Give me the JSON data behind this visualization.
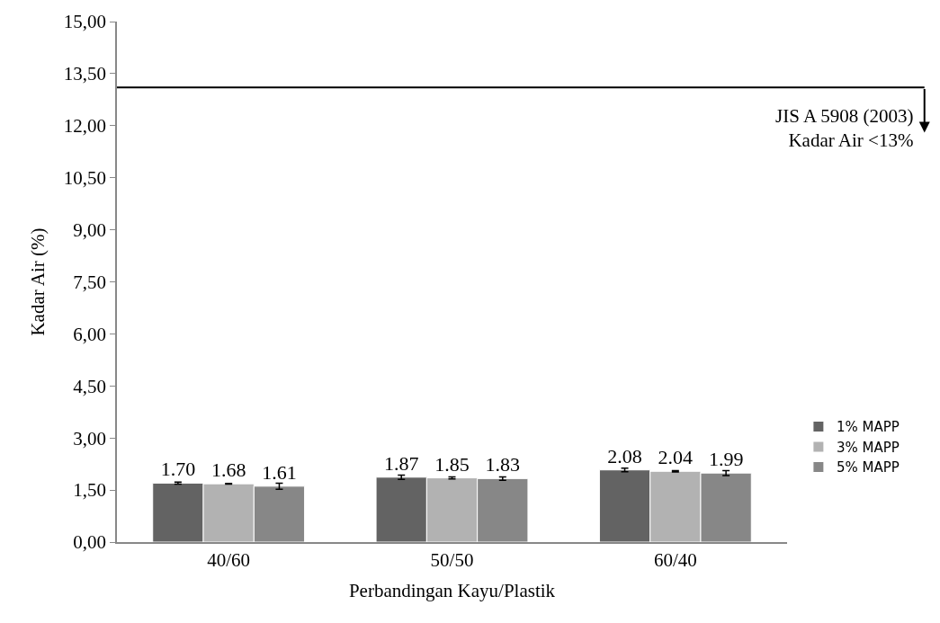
{
  "chart_data": {
    "type": "bar",
    "xlabel": "Perbandingan Kayu/Plastik",
    "ylabel": "Kadar Air (%)",
    "categories": [
      "40/60",
      "50/50",
      "60/40"
    ],
    "series": [
      {
        "name": "1% MAPP",
        "color": "#636363",
        "values": [
          1.7,
          1.87,
          2.08
        ],
        "value_labels": [
          "1.70",
          "1.87",
          "2.08"
        ],
        "errors": [
          0.03,
          0.06,
          0.05
        ]
      },
      {
        "name": "3% MAPP",
        "color": "#b2b2b2",
        "values": [
          1.68,
          1.85,
          2.04
        ],
        "value_labels": [
          "1.68",
          "1.85",
          "2.04"
        ],
        "errors": [
          0.01,
          0.03,
          0.02
        ]
      },
      {
        "name": "5% MAPP",
        "color": "#878787",
        "values": [
          1.61,
          1.83,
          1.99
        ],
        "value_labels": [
          "1.61",
          "1.83",
          "1.99"
        ],
        "errors": [
          0.09,
          0.05,
          0.07
        ]
      }
    ],
    "ylim": [
      0,
      15
    ],
    "yticks": [
      {
        "value": 0,
        "label": "0,00"
      },
      {
        "value": 1.5,
        "label": "1,50"
      },
      {
        "value": 3,
        "label": "3,00"
      },
      {
        "value": 4.5,
        "label": "4,50"
      },
      {
        "value": 6,
        "label": "6,00"
      },
      {
        "value": 7.5,
        "label": "7,50"
      },
      {
        "value": 9,
        "label": "9,00"
      },
      {
        "value": 10.5,
        "label": "10,50"
      },
      {
        "value": 12,
        "label": "12,00"
      },
      {
        "value": 13.5,
        "label": "13,50"
      },
      {
        "value": 15,
        "label": "15,00"
      }
    ],
    "ref_lines": [
      {
        "axis": "y",
        "value": 13.1,
        "label": "JIS A 5908 (2003)\nKadar Air <13%",
        "color": "#000000"
      }
    ],
    "legend": "right"
  }
}
